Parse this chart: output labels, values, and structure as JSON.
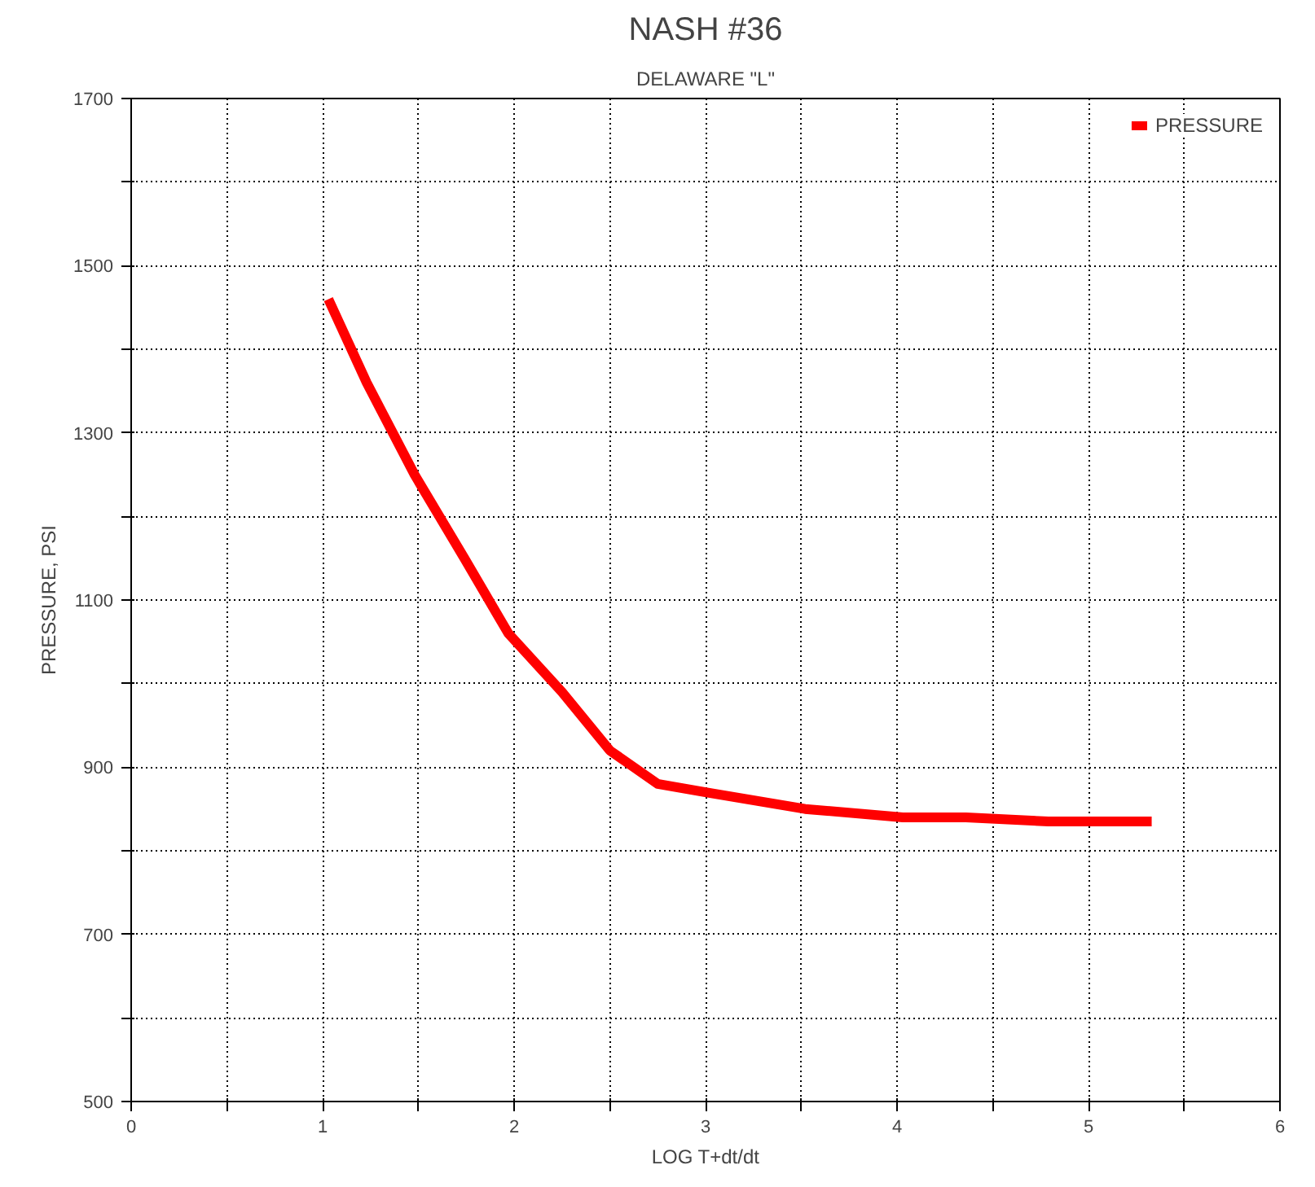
{
  "chart_data": {
    "type": "line",
    "title": "NASH #36",
    "subtitle": "DELAWARE \"L\"",
    "xlabel": "LOG T+dt/dt",
    "ylabel": "PRESSURE, PSI",
    "series": [
      {
        "name": "PRESSURE",
        "color": "#ff0000",
        "x": [
          1.03,
          1.23,
          1.48,
          1.74,
          1.97,
          2.25,
          2.5,
          2.75,
          3.0,
          3.26,
          3.52,
          4.03,
          4.36,
          4.79,
          5.33
        ],
        "values": [
          1460,
          1360,
          1250,
          1150,
          1060,
          990,
          920,
          880,
          870,
          860,
          850,
          840,
          840,
          835,
          835
        ]
      }
    ],
    "xlim": [
      0,
      6
    ],
    "ylim": [
      500,
      1700
    ],
    "xticks": [
      0,
      {
        "value": 0.5,
        "label": null
      },
      1,
      {
        "value": 1.5,
        "label": null
      },
      2,
      {
        "value": 2.5,
        "label": null
      },
      3,
      {
        "value": 3.5,
        "label": null
      },
      4,
      {
        "value": 4.5,
        "label": null
      },
      5,
      {
        "value": 5.5,
        "label": null
      },
      6
    ],
    "yticks": [
      500,
      {
        "value": 600,
        "label": null
      },
      700,
      {
        "value": 800,
        "label": null
      },
      900,
      {
        "value": 1000,
        "label": null
      },
      1100,
      {
        "value": 1200,
        "label": null
      },
      1300,
      {
        "value": 1400,
        "label": null
      },
      1500,
      {
        "value": 1600,
        "label": null
      },
      1700
    ],
    "grid": true,
    "legend": "top right",
    "marker": "none",
    "line_style": "solid"
  }
}
